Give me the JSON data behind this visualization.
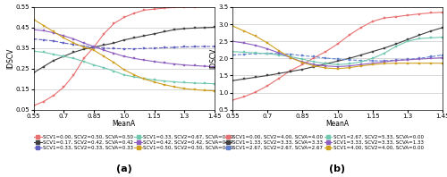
{
  "x": [
    0.55,
    0.6,
    0.65,
    0.7,
    0.75,
    0.8,
    0.85,
    0.9,
    0.95,
    1.0,
    1.05,
    1.1,
    1.15,
    1.2,
    1.25,
    1.3,
    1.35,
    1.4,
    1.45
  ],
  "xlim": [
    0.55,
    1.45
  ],
  "xlabel": "MeanA",
  "ylabel": "IDSCV",
  "subplot_a_ylim": [
    0.05,
    0.55
  ],
  "subplot_b_ylim": [
    0.5,
    3.5
  ],
  "subplot_a_yticks": [
    0.05,
    0.15,
    0.25,
    0.35,
    0.45,
    0.55
  ],
  "subplot_b_yticks": [
    0.5,
    1.0,
    1.5,
    2.0,
    2.5,
    3.0,
    3.5
  ],
  "xticks": [
    0.55,
    0.7,
    0.85,
    1.0,
    1.15,
    1.3,
    1.45
  ],
  "title_a": "(a)",
  "title_b": "(b)",
  "series_a": [
    {
      "label": "SCV1=0.00, SCV2=0.50, SCVA=0.50",
      "color": "#e87070",
      "linestyle": "-",
      "marker": "s",
      "y": [
        0.07,
        0.09,
        0.12,
        0.16,
        0.22,
        0.3,
        0.355,
        0.42,
        0.47,
        0.5,
        0.52,
        0.535,
        0.54,
        0.545,
        0.548,
        0.55,
        0.551,
        0.552,
        0.553
      ]
    },
    {
      "label": "SCV1=0.17, SCV2=0.42, SCVA=0.42",
      "color": "#404040",
      "linestyle": "-",
      "marker": "s",
      "y": [
        0.23,
        0.26,
        0.29,
        0.31,
        0.33,
        0.345,
        0.355,
        0.365,
        0.375,
        0.39,
        0.4,
        0.41,
        0.42,
        0.43,
        0.44,
        0.445,
        0.448,
        0.45,
        0.452
      ]
    },
    {
      "label": "SCV1=0.33, SCV2=0.33, SCVA=0.33",
      "color": "#6060c0",
      "linestyle": "--",
      "marker": "s",
      "y": [
        0.395,
        0.39,
        0.385,
        0.375,
        0.368,
        0.36,
        0.355,
        0.35,
        0.348,
        0.347,
        0.347,
        0.348,
        0.35,
        0.352,
        0.354,
        0.356,
        0.357,
        0.358,
        0.358
      ]
    },
    {
      "label": "SCV1=0.33, SCV2=0.67, SCVA=0.00",
      "color": "#70c8b0",
      "linestyle": "-",
      "marker": "s",
      "y": [
        0.335,
        0.33,
        0.32,
        0.31,
        0.3,
        0.285,
        0.268,
        0.255,
        0.238,
        0.22,
        0.21,
        0.202,
        0.195,
        0.19,
        0.186,
        0.182,
        0.18,
        0.178,
        0.177
      ]
    },
    {
      "label": "SCV1=0.42, SCV2=0.42, SCVA=0.17",
      "color": "#9060c0",
      "linestyle": "-",
      "marker": "s",
      "y": [
        0.44,
        0.435,
        0.425,
        0.41,
        0.395,
        0.375,
        0.358,
        0.34,
        0.325,
        0.31,
        0.3,
        0.292,
        0.285,
        0.278,
        0.273,
        0.268,
        0.265,
        0.262,
        0.26
      ]
    },
    {
      "label": "SCV1=0.50, SCV2=0.50, SCVA=0.00",
      "color": "#d0a020",
      "linestyle": "-",
      "marker": "s",
      "y": [
        0.49,
        0.46,
        0.43,
        0.4,
        0.375,
        0.355,
        0.34,
        0.31,
        0.28,
        0.245,
        0.22,
        0.2,
        0.185,
        0.172,
        0.162,
        0.153,
        0.148,
        0.144,
        0.142
      ]
    }
  ],
  "series_b": [
    {
      "label": "SCV1=0.00, SCV2=4.00, SCVA=4.00",
      "color": "#e87070",
      "linestyle": "-",
      "marker": "s",
      "y": [
        0.78,
        0.88,
        1.02,
        1.2,
        1.42,
        1.65,
        1.82,
        2.02,
        2.2,
        2.42,
        2.68,
        2.9,
        3.08,
        3.18,
        3.22,
        3.26,
        3.3,
        3.33,
        3.35
      ]
    },
    {
      "label": "SCV1=1.33, SCV2=3.33, SCVA=3.33",
      "color": "#404040",
      "linestyle": "-",
      "marker": "s",
      "y": [
        1.35,
        1.4,
        1.45,
        1.5,
        1.56,
        1.62,
        1.68,
        1.76,
        1.84,
        1.92,
        2.0,
        2.1,
        2.2,
        2.3,
        2.42,
        2.55,
        2.68,
        2.8,
        2.9
      ]
    },
    {
      "label": "SCV1=2.67, SCV2=2.67, SCVA=2.67",
      "color": "#6080d0",
      "linestyle": "--",
      "marker": "s",
      "y": [
        2.1,
        2.12,
        2.14,
        2.15,
        2.14,
        2.12,
        2.08,
        2.05,
        2.01,
        1.98,
        1.96,
        1.94,
        1.93,
        1.93,
        1.95,
        1.97,
        2.0,
        2.05,
        2.1
      ]
    },
    {
      "label": "SCV1=2.67, SCV2=5.33, SCVA=0.00",
      "color": "#70c8b0",
      "linestyle": "-",
      "marker": "s",
      "y": [
        2.2,
        2.18,
        2.16,
        2.14,
        2.1,
        2.05,
        1.98,
        1.9,
        1.85,
        1.82,
        1.84,
        1.9,
        2.0,
        2.15,
        2.35,
        2.5,
        2.58,
        2.6,
        2.62
      ]
    },
    {
      "label": "SCV1=3.33, SCV2=3.33, SCVA=1.33",
      "color": "#9060c0",
      "linestyle": "-",
      "marker": "s",
      "y": [
        2.5,
        2.45,
        2.38,
        2.28,
        2.16,
        2.02,
        1.9,
        1.82,
        1.78,
        1.76,
        1.78,
        1.82,
        1.86,
        1.9,
        1.94,
        1.96,
        1.98,
        2.0,
        2.02
      ]
    },
    {
      "label": "SCV1=4.00, SCV2=4.00, SCVA=0.00",
      "color": "#d0a020",
      "linestyle": "-",
      "marker": "s",
      "y": [
        2.95,
        2.8,
        2.65,
        2.45,
        2.22,
        2.02,
        1.88,
        1.78,
        1.72,
        1.7,
        1.73,
        1.78,
        1.82,
        1.85,
        1.86,
        1.86,
        1.86,
        1.86,
        1.86
      ]
    }
  ],
  "legend_a": [
    [
      "SCV1=0.00, SCV2=0.50, SCVA=0.50",
      "#e87070",
      "-",
      "s"
    ],
    [
      "SCV1=0.17, SCV2=0.42, SCVA=0.42",
      "#404040",
      "-",
      "s"
    ],
    [
      "SCV1=0.33, SCV2=0.33, SCVA=0.33",
      "#6060c0",
      "--",
      "s"
    ],
    [
      "SCV1=0.33, SCV2=0.67, SCVA=0.00",
      "#70c8b0",
      "-",
      "s"
    ],
    [
      "SCV1=0.42, SCV2=0.42, SCVA=0.17",
      "#9060c0",
      "-",
      "s"
    ],
    [
      "SCV1=0.50, SCV2=0.50, SCVA=0.00",
      "#d0a020",
      "-",
      "s"
    ]
  ],
  "legend_b": [
    [
      "SCV1=0.00, SCV2=4.00, SCVA=4.00",
      "#e87070",
      "-",
      "s"
    ],
    [
      "SCV1=1.33, SCV2=3.33, SCVA=3.33",
      "#404040",
      "-",
      "s"
    ],
    [
      "SCV1=2.67, SCV2=2.67, SCVA=2.67",
      "#6080d0",
      "--",
      "s"
    ],
    [
      "SCV1=2.67, SCV2=5.33, SCVA=0.00",
      "#70c8b0",
      "-",
      "s"
    ],
    [
      "SCV1=3.33, SCV2=3.33, SCVA=1.33",
      "#9060c0",
      "-",
      "s"
    ],
    [
      "SCV1=4.00, SCV2=4.00, SCVA=0.00",
      "#d0a020",
      "-",
      "s"
    ]
  ]
}
